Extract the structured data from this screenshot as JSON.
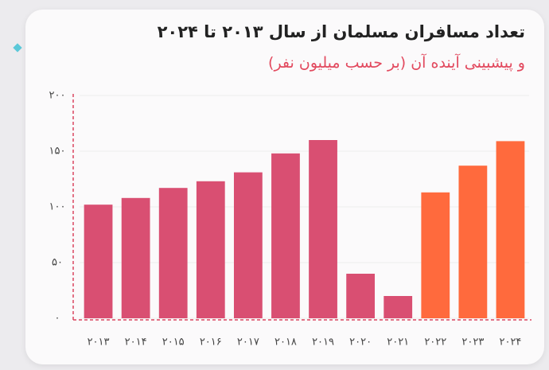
{
  "chart_data": {
    "type": "bar",
    "title": "تعداد مسافران مسلمان از سال ۲۰۱۳ تا ۲۰۲۴",
    "subtitle": "و پیشبینی آینده آن (بر حسب میلیون نفر)",
    "categories": [
      "۲۰۱۳",
      "۲۰۱۴",
      "۲۰۱۵",
      "۲۰۱۶",
      "۲۰۱۷",
      "۲۰۱۸",
      "۲۰۱۹",
      "۲۰۲۰",
      "۲۰۲۱",
      "۲۰۲۲",
      "۲۰۲۳",
      "۲۰۲۴"
    ],
    "values": [
      102,
      108,
      117,
      123,
      131,
      148,
      160,
      40,
      20,
      113,
      137,
      159
    ],
    "colors": [
      "#d94f72",
      "#d94f72",
      "#d94f72",
      "#d94f72",
      "#d94f72",
      "#d94f72",
      "#d94f72",
      "#d94f72",
      "#d94f72",
      "#ff6a3d",
      "#ff6a3d",
      "#ff6a3d"
    ],
    "ylim": [
      0,
      200
    ],
    "yticks": [
      {
        "value": 0,
        "label": "۰"
      },
      {
        "value": 50,
        "label": "۵۰"
      },
      {
        "value": 100,
        "label": "۱۰۰"
      },
      {
        "value": 150,
        "label": "۱۵۰"
      },
      {
        "value": 200,
        "label": "۲۰۰"
      }
    ],
    "grid": true
  }
}
